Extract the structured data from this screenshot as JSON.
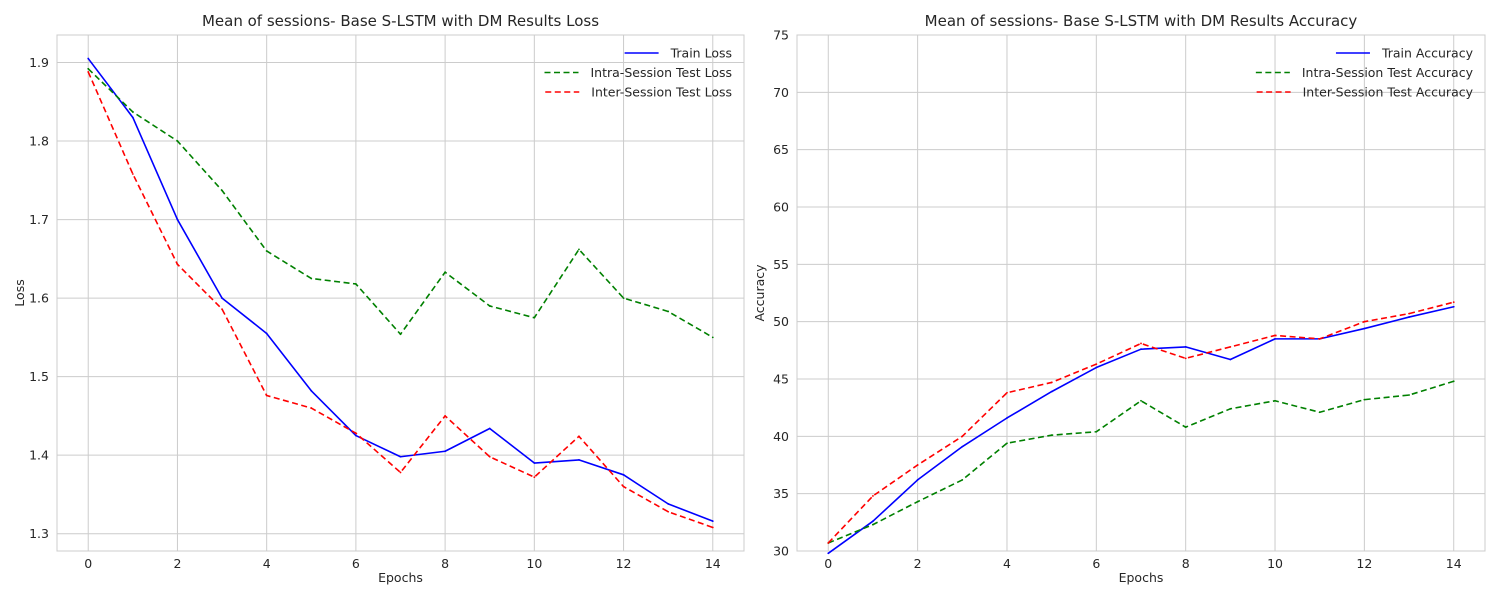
{
  "chart_data": [
    {
      "type": "line",
      "title": "Mean of sessions- Base S-LSTM with DM Results Loss",
      "xlabel": "Epochs",
      "ylabel": "Loss",
      "xlim": [
        -0.7,
        14.7
      ],
      "ylim": [
        1.278,
        1.935
      ],
      "xticks": [
        0,
        2,
        4,
        6,
        8,
        10,
        12,
        14
      ],
      "yticks": [
        1.3,
        1.4,
        1.5,
        1.6,
        1.7,
        1.8,
        1.9
      ],
      "ytick_labels": [
        "1.3",
        "1.4",
        "1.5",
        "1.6",
        "1.7",
        "1.8",
        "1.9"
      ],
      "grid": true,
      "legend_position": "top-right",
      "x": [
        0,
        1,
        2,
        3,
        4,
        5,
        6,
        7,
        8,
        9,
        10,
        11,
        12,
        13,
        14
      ],
      "series": [
        {
          "name": "Train Loss",
          "color": "#0000ff",
          "dashed": false,
          "values": [
            1.905,
            1.83,
            1.7,
            1.6,
            1.555,
            1.482,
            1.425,
            1.398,
            1.405,
            1.434,
            1.39,
            1.394,
            1.375,
            1.338,
            1.316
          ]
        },
        {
          "name": "Intra-Session Test Loss",
          "color": "#008000",
          "dashed": true,
          "values": [
            1.892,
            1.837,
            1.8,
            1.737,
            1.66,
            1.625,
            1.618,
            1.554,
            1.633,
            1.59,
            1.575,
            1.662,
            1.6,
            1.583,
            1.55
          ]
        },
        {
          "name": "Inter-Session Test Loss",
          "color": "#ff0000",
          "dashed": true,
          "values": [
            1.888,
            1.758,
            1.643,
            1.586,
            1.476,
            1.46,
            1.428,
            1.378,
            1.45,
            1.398,
            1.372,
            1.424,
            1.36,
            1.328,
            1.308
          ]
        }
      ]
    },
    {
      "type": "line",
      "title": "Mean of sessions- Base S-LSTM with DM Results Accuracy",
      "xlabel": "Epochs",
      "ylabel": "Accuracy",
      "xlim": [
        -0.7,
        14.7
      ],
      "ylim": [
        30,
        75
      ],
      "xticks": [
        0,
        2,
        4,
        6,
        8,
        10,
        12,
        14
      ],
      "yticks": [
        30,
        35,
        40,
        45,
        50,
        55,
        60,
        65,
        70,
        75
      ],
      "ytick_labels": [
        "30",
        "35",
        "40",
        "45",
        "50",
        "55",
        "60",
        "65",
        "70",
        "75"
      ],
      "grid": true,
      "legend_position": "top-right",
      "x": [
        0,
        1,
        2,
        3,
        4,
        5,
        6,
        7,
        8,
        9,
        10,
        11,
        12,
        13,
        14
      ],
      "series": [
        {
          "name": "Train Accuracy",
          "color": "#0000ff",
          "dashed": false,
          "values": [
            29.8,
            32.6,
            36.2,
            39.1,
            41.6,
            43.9,
            46.0,
            47.6,
            47.8,
            46.7,
            48.5,
            48.5,
            49.4,
            50.4,
            51.3
          ]
        },
        {
          "name": "Intra-Session Test Accuracy",
          "color": "#008000",
          "dashed": true,
          "values": [
            30.7,
            32.3,
            34.3,
            36.2,
            39.4,
            40.1,
            40.4,
            43.1,
            40.8,
            42.4,
            43.1,
            42.1,
            43.2,
            43.6,
            44.8
          ]
        },
        {
          "name": "Inter-Session Test Accuracy",
          "color": "#ff0000",
          "dashed": true,
          "values": [
            30.7,
            34.8,
            37.5,
            40.0,
            43.8,
            44.7,
            46.3,
            48.1,
            46.8,
            47.8,
            48.8,
            48.5,
            50.0,
            50.7,
            51.7
          ]
        }
      ]
    }
  ]
}
